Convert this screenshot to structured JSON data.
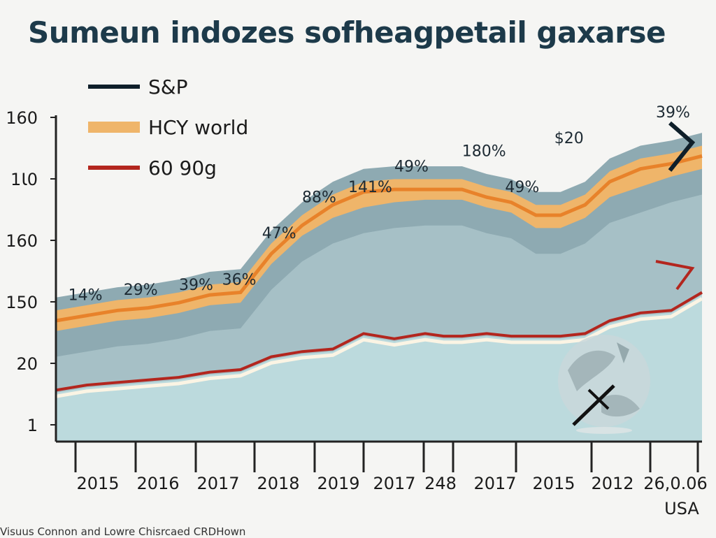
{
  "title": "Sumeun indozes sofheagpetail gaxarse",
  "footnote": "Visuus  Connon and Lowre Chisrcaed CRDHown",
  "colors": {
    "background": "#f5f5f3",
    "sp_line": "#0f1f2a",
    "hcy_line": "#e8822a",
    "hcy_band": "#efb56a",
    "red_line": "#b3261e",
    "cream_line": "#fbf4e4",
    "outer_band": "#8eaab2",
    "mid_band": "#a6c0c6",
    "base_area": "#bcdadd",
    "axis": "#222222"
  },
  "chart_data": {
    "type": "area",
    "title": "Sumeun indozes sofheagpetail gaxarse",
    "xlabel": "",
    "ylabel": "",
    "x_tick_labels": [
      "2015",
      "2016",
      "2017",
      "2018",
      "2019",
      "2017",
      "248",
      "2017",
      "2015",
      "2012",
      "26,0.06"
    ],
    "x_extra_label": "USA",
    "y_tick_labels": [
      "160",
      "1Ɩ0",
      "160",
      "150",
      "20",
      "1"
    ],
    "ylim": [
      0,
      6
    ],
    "grid": false,
    "legend_position": "top-left",
    "legend": [
      {
        "label": "S&P",
        "icon": "dark-line"
      },
      {
        "label": "HCY world",
        "icon": "orange-band"
      },
      {
        "label": "60 90g",
        "icon": "red-line"
      }
    ],
    "x": [
      0,
      0.5,
      1,
      1.5,
      2,
      2.5,
      3,
      3.5,
      4,
      4.5,
      5,
      5.5,
      6,
      6.3,
      6.6,
      7,
      7.4,
      7.8,
      8.2,
      8.6,
      9,
      9.5,
      10,
      10.5
    ],
    "series": [
      {
        "name": "S&P",
        "values": [
          1.9,
          2.0,
          2.1,
          2.15,
          2.25,
          2.4,
          2.45,
          3.2,
          3.75,
          4.1,
          4.3,
          4.4,
          4.45,
          4.45,
          4.45,
          4.3,
          4.2,
          3.9,
          3.9,
          4.1,
          4.5,
          4.7,
          4.9,
          5.05
        ]
      },
      {
        "name": "HCY world",
        "values": [
          2.05,
          2.15,
          2.25,
          2.3,
          2.4,
          2.55,
          2.6,
          3.35,
          3.9,
          4.3,
          4.55,
          4.6,
          4.6,
          4.6,
          4.6,
          4.45,
          4.35,
          4.1,
          4.1,
          4.3,
          4.75,
          5.0,
          5.1,
          5.25
        ]
      },
      {
        "name": "60 90g",
        "values": [
          0.7,
          0.8,
          0.85,
          0.9,
          0.95,
          1.05,
          1.1,
          1.35,
          1.45,
          1.5,
          1.8,
          1.7,
          1.8,
          1.75,
          1.75,
          1.8,
          1.75,
          1.75,
          1.75,
          1.8,
          2.05,
          2.2,
          2.25,
          2.6
        ]
      }
    ],
    "annotations": [
      {
        "text": "14%",
        "x": 0.2,
        "y": 2.45
      },
      {
        "text": "29%",
        "x": 1.1,
        "y": 2.55
      },
      {
        "text": "39%",
        "x": 2.0,
        "y": 2.65
      },
      {
        "text": "36%",
        "x": 2.7,
        "y": 2.75
      },
      {
        "text": "47%",
        "x": 3.35,
        "y": 3.65
      },
      {
        "text": "88%",
        "x": 4.0,
        "y": 4.35
      },
      {
        "text": "141%",
        "x": 4.75,
        "y": 4.55
      },
      {
        "text": "49%",
        "x": 5.5,
        "y": 4.95
      },
      {
        "text": "180%",
        "x": 6.6,
        "y": 5.25
      },
      {
        "text": "49%",
        "x": 7.3,
        "y": 4.55
      },
      {
        "text": "$20",
        "x": 8.1,
        "y": 5.5
      },
      {
        "text": "39%",
        "x": 9.75,
        "y": 6.0
      }
    ]
  }
}
